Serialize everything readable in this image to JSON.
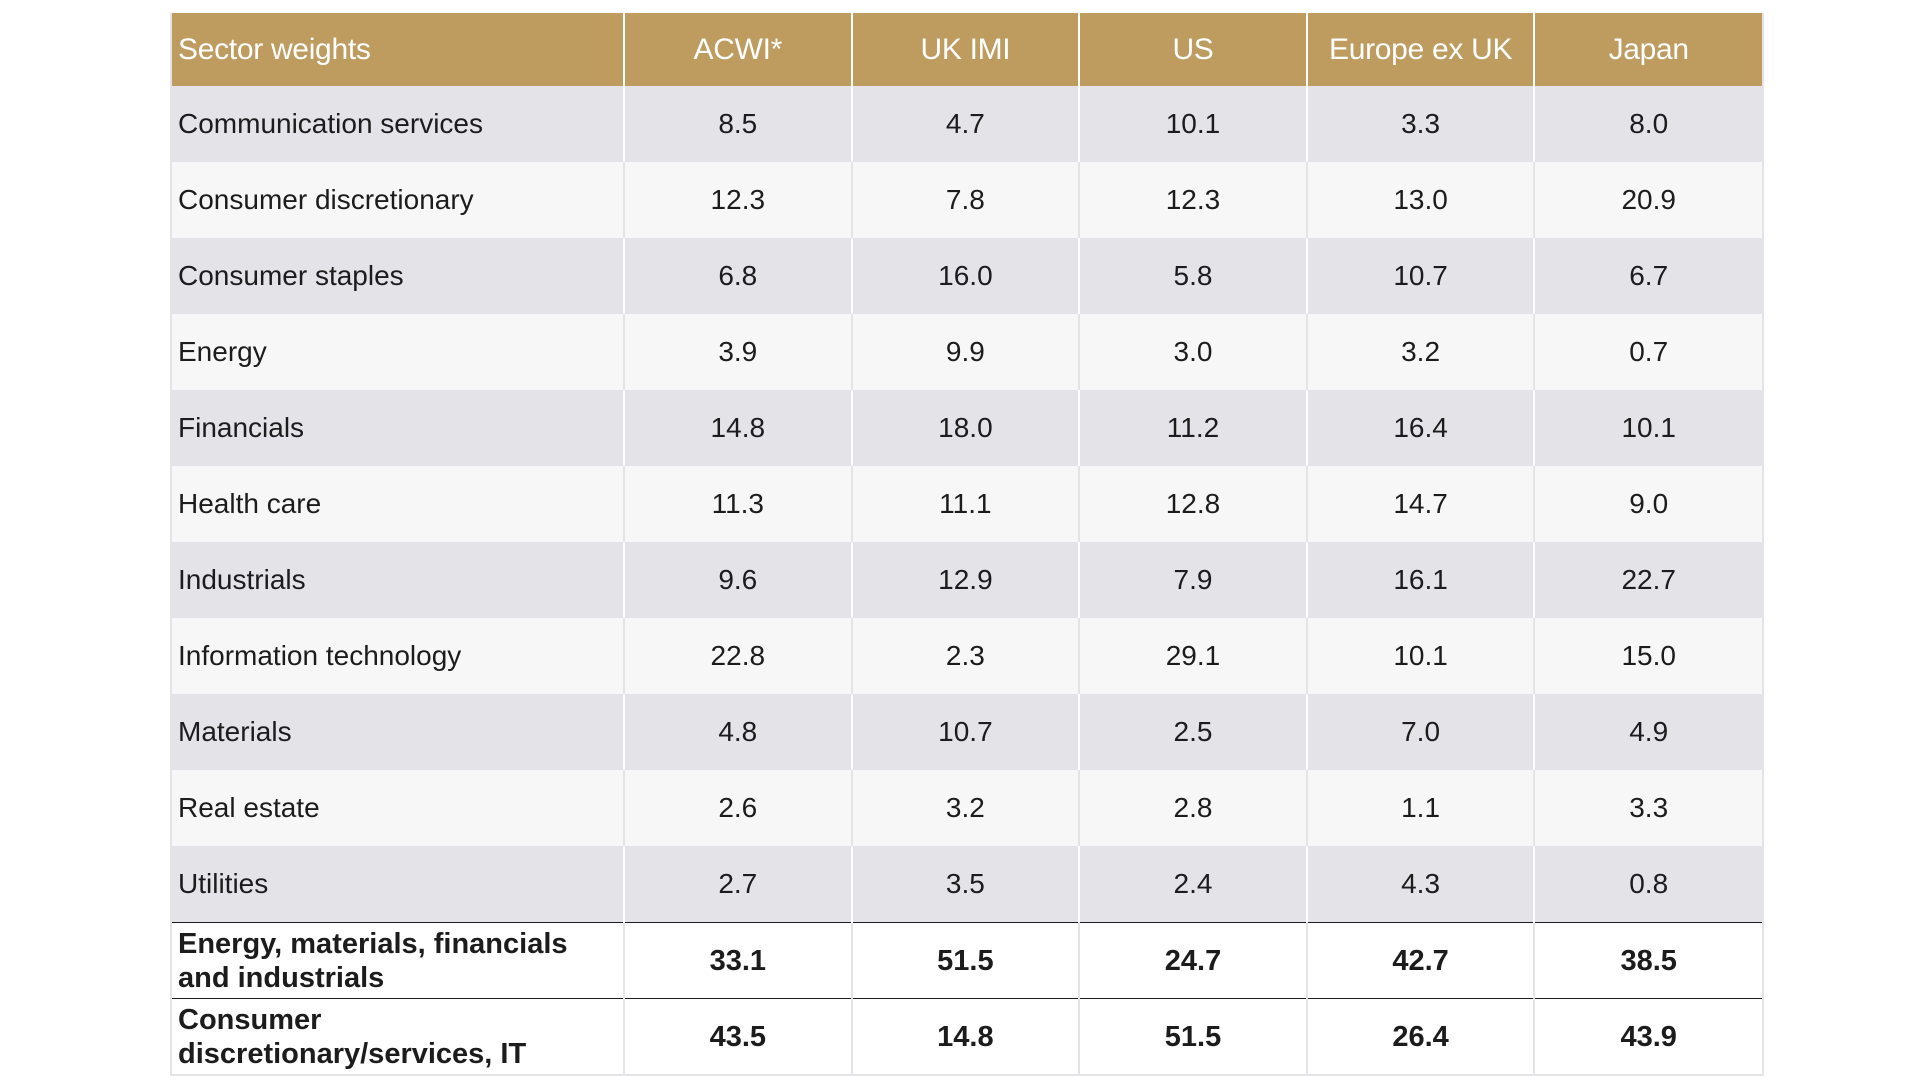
{
  "table": {
    "headers": [
      "Sector weights",
      "ACWI*",
      "UK IMI",
      "US",
      "Europe ex UK",
      "Japan"
    ],
    "rows": [
      {
        "sector": "Communication services",
        "values": [
          "8.5",
          "4.7",
          "10.1",
          "3.3",
          "8.0"
        ]
      },
      {
        "sector": "Consumer discretionary",
        "values": [
          "12.3",
          "7.8",
          "12.3",
          "13.0",
          "20.9"
        ]
      },
      {
        "sector": "Consumer staples",
        "values": [
          "6.8",
          "16.0",
          "5.8",
          "10.7",
          "6.7"
        ]
      },
      {
        "sector": "Energy",
        "values": [
          "3.9",
          "9.9",
          "3.0",
          "3.2",
          "0.7"
        ]
      },
      {
        "sector": "Financials",
        "values": [
          "14.8",
          "18.0",
          "11.2",
          "16.4",
          "10.1"
        ]
      },
      {
        "sector": "Health care",
        "values": [
          "11.3",
          "11.1",
          "12.8",
          "14.7",
          "9.0"
        ]
      },
      {
        "sector": "Industrials",
        "values": [
          "9.6",
          "12.9",
          "7.9",
          "16.1",
          "22.7"
        ]
      },
      {
        "sector": "Information technology",
        "values": [
          "22.8",
          "2.3",
          "29.1",
          "10.1",
          "15.0"
        ]
      },
      {
        "sector": "Materials",
        "values": [
          "4.8",
          "10.7",
          "2.5",
          "7.0",
          "4.9"
        ]
      },
      {
        "sector": "Real estate",
        "values": [
          "2.6",
          "3.2",
          "2.8",
          "1.1",
          "3.3"
        ]
      },
      {
        "sector": "Utilities",
        "values": [
          "2.7",
          "3.5",
          "2.4",
          "4.3",
          "0.8"
        ]
      }
    ],
    "totals": [
      {
        "sector": "Energy, materials, financials and industrials",
        "values": [
          "33.1",
          "51.5",
          "24.7",
          "42.7",
          "38.5"
        ]
      },
      {
        "sector": "Consumer discretionary/services, IT",
        "values": [
          "43.5",
          "14.8",
          "51.5",
          "26.4",
          "43.9"
        ]
      }
    ]
  },
  "colors": {
    "header_bg": "#be9b5f",
    "header_text": "#ffffff",
    "row_odd_bg": "#e3e3e8",
    "row_even_bg": "#f7f7f8"
  }
}
